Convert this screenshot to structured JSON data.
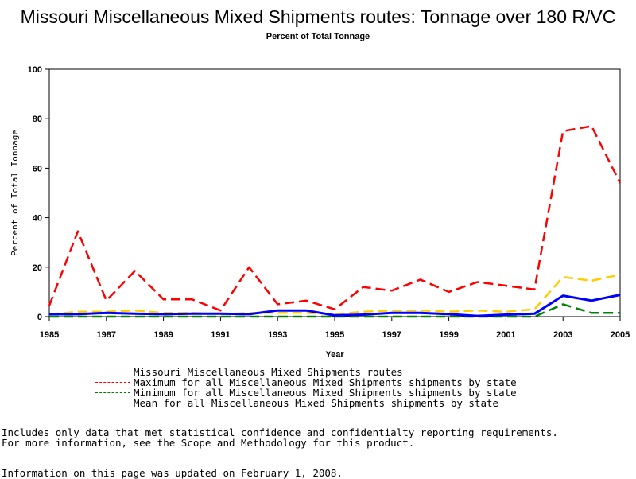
{
  "chart_data": {
    "type": "line",
    "title": "Missouri Miscellaneous Mixed Shipments routes: Tonnage over 180 R/VC",
    "subtitle": "Percent of Total Tonnage",
    "xlabel": "Year",
    "ylabel": "Percent of Total Tonnage",
    "x": [
      1985,
      1986,
      1987,
      1988,
      1989,
      1990,
      1991,
      1992,
      1993,
      1994,
      1995,
      1996,
      1997,
      1998,
      1999,
      2000,
      2001,
      2002,
      2003,
      2004,
      2005
    ],
    "xticks": [
      "1985",
      "1987",
      "1989",
      "1991",
      "1993",
      "1995",
      "1997",
      "1999",
      "2001",
      "2003",
      "2005"
    ],
    "yticks": [
      "0",
      "20",
      "40",
      "60",
      "80",
      "100"
    ],
    "xlim": [
      1985,
      2005
    ],
    "ylim": [
      0,
      100
    ],
    "grid": false,
    "legend_position": "bottom",
    "series": [
      {
        "name": "Missouri Miscellaneous Mixed Shipments routes",
        "color": "#0000ff",
        "style": "solid",
        "values": [
          1.0,
          1.0,
          1.5,
          1.2,
          1.0,
          1.2,
          1.2,
          1.0,
          2.5,
          2.5,
          0.5,
          0.8,
          1.5,
          1.5,
          1.0,
          0.3,
          0.8,
          1.2,
          8.5,
          6.5,
          8.8
        ]
      },
      {
        "name": "Maximum for all Miscellaneous Mixed Shipments shipments by state",
        "color": "#ff0000",
        "style": "dashed",
        "values": [
          4.5,
          34.5,
          6.5,
          18.5,
          7.0,
          7.0,
          2.5,
          20.0,
          5.0,
          6.5,
          3.0,
          12.0,
          10.5,
          15.0,
          10.0,
          14.0,
          12.5,
          11.0,
          75.0,
          77.0,
          54.0
        ]
      },
      {
        "name": "Minimum for all Miscellaneous Mixed Shipments shipments by state",
        "color": "#008000",
        "style": "dashed",
        "values": [
          0.0,
          0.0,
          0.0,
          0.0,
          0.0,
          0.0,
          0.0,
          0.0,
          0.0,
          0.0,
          0.0,
          0.0,
          0.0,
          0.0,
          0.0,
          0.0,
          0.0,
          0.0,
          5.0,
          1.5,
          1.5
        ]
      },
      {
        "name": "Mean for all Miscellaneous Mixed Shipments shipments by state",
        "color": "#ffcc00",
        "style": "dashed",
        "values": [
          1.0,
          2.0,
          2.0,
          2.5,
          1.5,
          1.5,
          1.0,
          1.5,
          1.5,
          1.5,
          1.0,
          2.0,
          2.5,
          2.5,
          2.0,
          2.5,
          2.0,
          3.0,
          16.0,
          14.5,
          17.0
        ]
      }
    ]
  },
  "footnotes": {
    "line1": "Includes only data that met statistical confidence and confidentialty reporting requirements.",
    "line2": "For more information, see the Scope and Methodology for this product.",
    "line3": "Information on this page was updated on February 1, 2008."
  }
}
